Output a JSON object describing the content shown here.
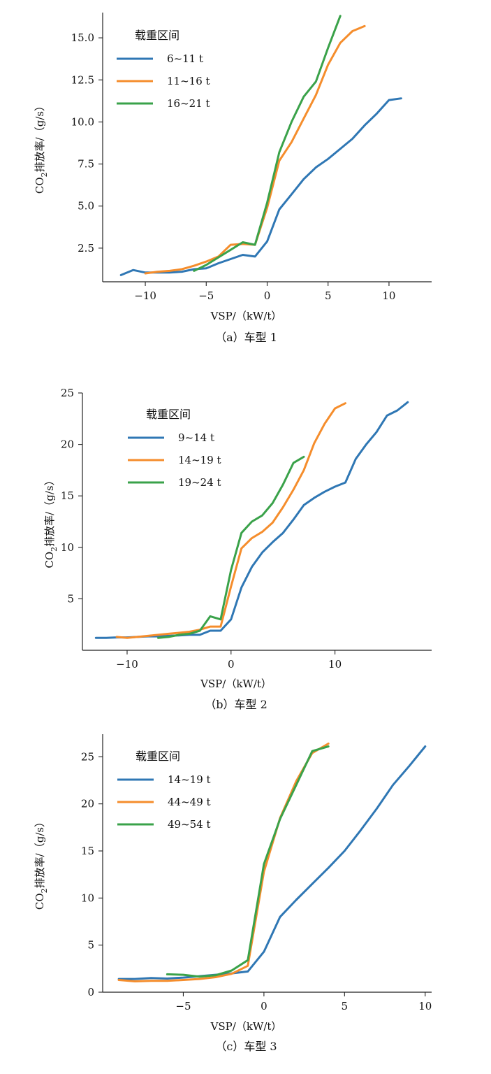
{
  "colors": {
    "blue": "#2f77b4",
    "orange": "#f58d2c",
    "green": "#3aa24a"
  },
  "chart_data": [
    {
      "type": "line",
      "caption": "（a）车型 1",
      "xlabel": "VSP/（kW/t）",
      "ylabel_prefix": "CO",
      "ylabel_sub": "2",
      "ylabel_suffix": "排放率/（g/s）",
      "legend_title": "载重区间",
      "xlim": [
        -13.5,
        13.5
      ],
      "ylim": [
        0.5,
        16.5
      ],
      "xticks": [
        -10,
        -5,
        0,
        5,
        10
      ],
      "xtick_labels": [
        "−10",
        "−5",
        "0",
        "5",
        "10"
      ],
      "yticks": [
        2.5,
        5.0,
        7.5,
        10.0,
        12.5,
        15.0
      ],
      "ytick_labels": [
        "2.5",
        "5.0",
        "7.5",
        "10.0",
        "12.5",
        "15.0"
      ],
      "series": [
        {
          "name": "6~11 t",
          "color": "#2f77b4",
          "x": [
            -12,
            -11,
            -10,
            -9,
            -8,
            -7,
            -6,
            -5,
            -4,
            -3,
            -2,
            -1,
            0,
            1,
            2,
            3,
            4,
            5,
            6,
            7,
            8,
            9,
            10,
            11
          ],
          "y": [
            0.9,
            1.2,
            1.05,
            1.05,
            1.05,
            1.1,
            1.25,
            1.3,
            1.6,
            1.85,
            2.1,
            2.0,
            2.9,
            4.8,
            5.7,
            6.6,
            7.3,
            7.8,
            8.4,
            9.0,
            9.8,
            10.5,
            11.3,
            11.4
          ]
        },
        {
          "name": "11~16 t",
          "color": "#f58d2c",
          "x": [
            -10,
            -9,
            -8,
            -7,
            -6,
            -5,
            -4,
            -3,
            -2,
            -1,
            0,
            1,
            2,
            3,
            4,
            5,
            6,
            7,
            8
          ],
          "y": [
            1.0,
            1.1,
            1.15,
            1.25,
            1.45,
            1.7,
            2.0,
            2.7,
            2.75,
            2.7,
            4.9,
            7.7,
            8.8,
            10.2,
            11.6,
            13.4,
            14.7,
            15.4,
            15.7
          ]
        },
        {
          "name": "16~21 t",
          "color": "#3aa24a",
          "x": [
            -6,
            -5,
            -4,
            -3,
            -2,
            -1,
            0,
            1,
            2,
            3,
            4,
            5,
            6
          ],
          "y": [
            1.15,
            1.5,
            1.95,
            2.4,
            2.85,
            2.7,
            5.2,
            8.2,
            10.0,
            11.5,
            12.4,
            14.4,
            16.3
          ]
        }
      ]
    },
    {
      "type": "line",
      "caption": "（b）车型 2",
      "xlabel": "VSP/（kW/t）",
      "ylabel_prefix": "CO",
      "ylabel_sub": "2",
      "ylabel_suffix": "排放率/（g/s）",
      "legend_title": "载重区间",
      "xlim": [
        -14.3,
        19.3
      ],
      "ylim": [
        0,
        25
      ],
      "xticks": [
        -10,
        0,
        10
      ],
      "xtick_labels": [
        "−10",
        "0",
        "10"
      ],
      "yticks": [
        5,
        10,
        15,
        20,
        25
      ],
      "ytick_labels": [
        "5",
        "10",
        "15",
        "20",
        "25"
      ],
      "series": [
        {
          "name": "9~14 t",
          "color": "#2f77b4",
          "x": [
            -13,
            -12,
            -11,
            -10,
            -9,
            -8,
            -7,
            -6,
            -5,
            -4,
            -3,
            -2,
            -1,
            0,
            1,
            2,
            3,
            4,
            5,
            6,
            7,
            8,
            9,
            10,
            11,
            12,
            13,
            14,
            15,
            16,
            17
          ],
          "y": [
            1.2,
            1.2,
            1.25,
            1.25,
            1.3,
            1.35,
            1.35,
            1.4,
            1.45,
            1.5,
            1.5,
            1.9,
            1.9,
            3.0,
            6.1,
            8.1,
            9.5,
            10.5,
            11.4,
            12.7,
            14.1,
            14.8,
            15.4,
            15.9,
            16.3,
            18.6,
            20.0,
            21.2,
            22.8,
            23.3,
            24.1
          ]
        },
        {
          "name": "14~19 t",
          "color": "#f58d2c",
          "x": [
            -11,
            -10,
            -9,
            -8,
            -7,
            -6,
            -5,
            -4,
            -3,
            -2,
            -1,
            0,
            1,
            2,
            3,
            4,
            5,
            6,
            7,
            8,
            9,
            10,
            11
          ],
          "y": [
            1.3,
            1.2,
            1.3,
            1.4,
            1.5,
            1.6,
            1.7,
            1.8,
            2.0,
            2.3,
            2.3,
            6.2,
            9.9,
            10.9,
            11.5,
            12.4,
            13.9,
            15.6,
            17.5,
            20.1,
            22.0,
            23.5,
            24.0
          ]
        },
        {
          "name": "19~24 t",
          "color": "#3aa24a",
          "x": [
            -7,
            -6,
            -5,
            -4,
            -3,
            -2,
            -1,
            0,
            1,
            2,
            3,
            4,
            5,
            6,
            7
          ],
          "y": [
            1.2,
            1.3,
            1.5,
            1.6,
            1.9,
            3.3,
            3.0,
            7.8,
            11.4,
            12.5,
            13.1,
            14.3,
            16.1,
            18.2,
            18.8
          ]
        }
      ]
    },
    {
      "type": "line",
      "caption": "（c）车型 3",
      "xlabel": "VSP/（kW/t）",
      "ylabel_prefix": "CO",
      "ylabel_sub": "2",
      "ylabel_suffix": "排放率/（g/s）",
      "legend_title": "载重区间",
      "xlim": [
        -10,
        10.4
      ],
      "ylim": [
        0,
        27.4
      ],
      "xticks": [
        -5,
        0,
        5,
        10
      ],
      "xtick_labels": [
        "−5",
        "0",
        "5",
        "10"
      ],
      "yticks": [
        0,
        5,
        10,
        15,
        20,
        25
      ],
      "ytick_labels": [
        "0",
        "5",
        "10",
        "15",
        "20",
        "25"
      ],
      "series": [
        {
          "name": "14~19 t",
          "color": "#2f77b4",
          "x": [
            -9,
            -8,
            -7,
            -6,
            -5,
            -4,
            -3,
            -2,
            -1,
            0,
            1,
            2,
            3,
            4,
            5,
            6,
            7,
            8,
            9,
            10
          ],
          "y": [
            1.4,
            1.4,
            1.5,
            1.45,
            1.55,
            1.7,
            1.85,
            2.0,
            2.2,
            4.3,
            8.0,
            9.8,
            11.5,
            13.2,
            15.0,
            17.2,
            19.5,
            22.0,
            24.0,
            26.1
          ]
        },
        {
          "name": "44~49 t",
          "color": "#f58d2c",
          "x": [
            -9,
            -8,
            -7,
            -6,
            -5,
            -4,
            -3,
            -2,
            -1,
            0,
            1,
            2,
            3,
            4
          ],
          "y": [
            1.3,
            1.15,
            1.2,
            1.2,
            1.3,
            1.4,
            1.6,
            1.95,
            2.8,
            12.8,
            18.5,
            22.4,
            25.4,
            26.4
          ]
        },
        {
          "name": "49~54 t",
          "color": "#3aa24a",
          "x": [
            -6,
            -5,
            -4,
            -3,
            -2,
            -1,
            0,
            1,
            2,
            3,
            4
          ],
          "y": [
            1.9,
            1.85,
            1.65,
            1.8,
            2.3,
            3.4,
            13.6,
            18.4,
            22.0,
            25.6,
            26.1
          ]
        }
      ]
    }
  ]
}
